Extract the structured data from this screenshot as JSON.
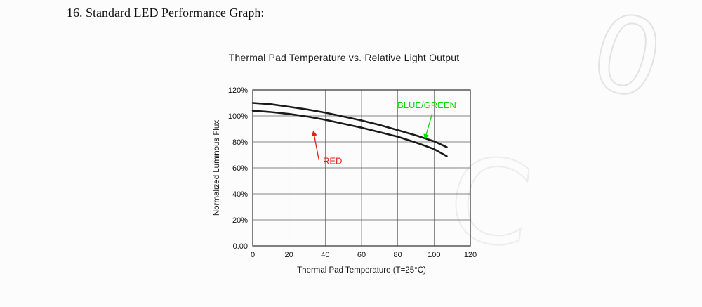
{
  "page": {
    "heading": "16. Standard LED Performance Graph:"
  },
  "watermark": {
    "top_right": "0",
    "center": "C"
  },
  "chart_data": {
    "type": "line",
    "title": "Thermal Pad Temperature vs. Relative Light Output",
    "xlabel": "Thermal Pad Temperature (T=25°C)",
    "ylabel": "Normalized Luminous Flux",
    "xlim": [
      0,
      120
    ],
    "ylim": [
      0,
      120
    ],
    "grid": true,
    "legend_position": "none",
    "x_ticks": [
      0,
      20,
      40,
      60,
      80,
      100,
      120
    ],
    "y_tick_values": [
      0,
      20,
      40,
      60,
      80,
      100,
      120
    ],
    "y_tick_labels": [
      "0.00",
      "20%",
      "40%",
      "60%",
      "80%",
      "100%",
      "120%"
    ],
    "series": [
      {
        "name": "BLUE/GREEN",
        "line_color": "#1a1a1a",
        "x": [
          0,
          10,
          20,
          30,
          40,
          50,
          60,
          70,
          80,
          90,
          100,
          107
        ],
        "values": [
          110,
          109,
          107,
          105,
          102.5,
          99.5,
          96.5,
          93,
          89,
          85,
          80.5,
          76
        ]
      },
      {
        "name": "RED",
        "line_color": "#1a1a1a",
        "x": [
          0,
          10,
          20,
          30,
          40,
          50,
          60,
          70,
          80,
          90,
          100,
          107
        ],
        "values": [
          104,
          103,
          101.5,
          99.5,
          97,
          94,
          91,
          87.5,
          84,
          79.5,
          74.5,
          69
        ]
      }
    ],
    "annotations": [
      {
        "text": "BLUE/GREEN",
        "color": "#00dd00",
        "label_at": [
          96,
          106
        ],
        "arrow_from": [
          99,
          102
        ],
        "arrow_to": [
          95,
          82.5
        ]
      },
      {
        "text": "RED",
        "color": "#e02015",
        "label_at": [
          44,
          63
        ],
        "arrow_from": [
          36.5,
          66
        ],
        "arrow_to": [
          33.5,
          88
        ]
      }
    ]
  }
}
